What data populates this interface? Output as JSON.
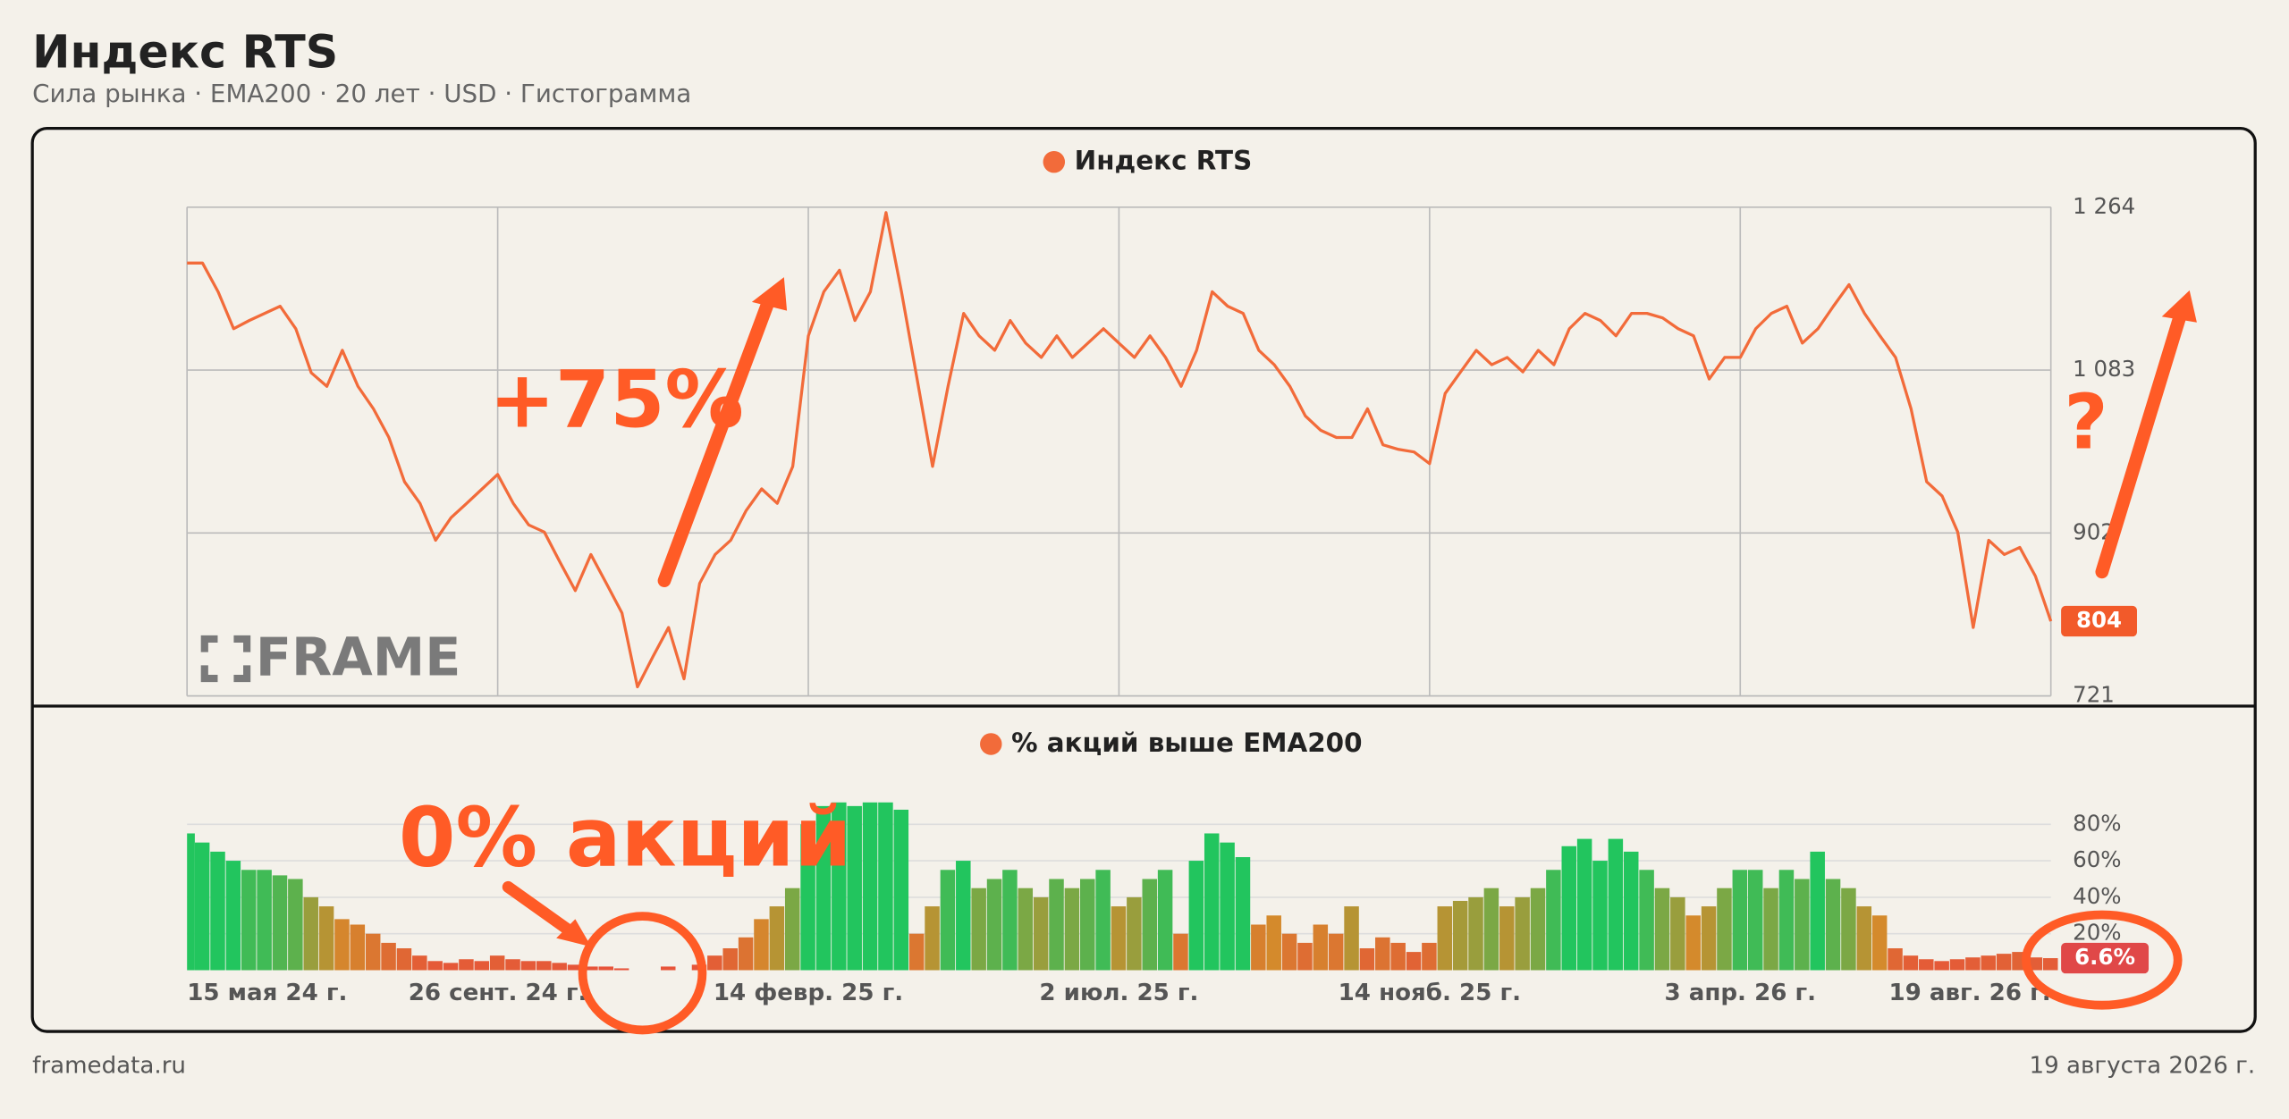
{
  "header": {
    "title": "Индекс RTS",
    "subtitle": "Сила рынка · EMA200 · 20 лет · USD · Гистограмма"
  },
  "footer": {
    "source": "framedata.ru",
    "date": "19 августа 2026 г."
  },
  "chart_data": [
    {
      "type": "line",
      "watermark": "FRAME",
      "annotations": [
        "+75%",
        "?"
      ],
      "series": [
        {
          "name": "Индекс RTS",
          "color": "#f26b3a",
          "values": [
            1202,
            1202,
            1170,
            1129,
            1138,
            1146,
            1154,
            1129,
            1080,
            1065,
            1105,
            1065,
            1040,
            1008,
            959,
            935,
            894,
            919,
            935,
            951,
            967,
            935,
            911,
            903,
            870,
            838,
            878,
            846,
            813,
            731,
            765,
            797,
            740,
            846,
            878,
            894,
            927,
            951,
            935,
            976,
            1121,
            1170,
            1194,
            1138,
            1170,
            1258,
            1170,
            1073,
            976,
            1065,
            1146,
            1121,
            1105,
            1138,
            1113,
            1097,
            1121,
            1097,
            1113,
            1129,
            1113,
            1097,
            1121,
            1097,
            1065,
            1105,
            1170,
            1154,
            1146,
            1105,
            1089,
            1065,
            1032,
            1016,
            1008,
            1008,
            1040,
            1000,
            995,
            992,
            979,
            1057,
            1081,
            1105,
            1089,
            1097,
            1081,
            1105,
            1089,
            1129,
            1146,
            1138,
            1121,
            1146,
            1146,
            1141,
            1129,
            1121,
            1073,
            1097,
            1097,
            1129,
            1146,
            1154,
            1113,
            1129,
            1154,
            1178,
            1146,
            1121,
            1097,
            1040,
            959,
            943,
            903,
            797,
            894,
            878,
            886,
            854,
            804
          ]
        }
      ],
      "ylim": [
        721,
        1264
      ],
      "yticks": [
        {
          "value": 721,
          "label": "721"
        },
        {
          "value": 902,
          "label": "902"
        },
        {
          "value": 1083,
          "label": "1 083"
        },
        {
          "value": 1264,
          "label": "1 264"
        }
      ],
      "grid": true,
      "badge_color": "#f25a2a"
    },
    {
      "type": "bar",
      "annotations": [
        "0% акций"
      ],
      "categories": [
        "15 мая 24 г.",
        null,
        null,
        null,
        null,
        null,
        null,
        null,
        null,
        null,
        null,
        null,
        null,
        null,
        null,
        null,
        null,
        null,
        null,
        null,
        "26 сент. 24 г.",
        null,
        null,
        null,
        null,
        null,
        null,
        null,
        null,
        null,
        null,
        null,
        null,
        null,
        null,
        null,
        null,
        null,
        null,
        null,
        "14 февр. 25 г.",
        null,
        null,
        null,
        null,
        null,
        null,
        null,
        null,
        null,
        null,
        null,
        null,
        null,
        null,
        null,
        null,
        null,
        null,
        null,
        "2 июл. 25 г.",
        null,
        null,
        null,
        null,
        null,
        null,
        null,
        null,
        null,
        null,
        null,
        null,
        null,
        null,
        null,
        null,
        null,
        null,
        null,
        "14 нояб. 25 г.",
        null,
        null,
        null,
        null,
        null,
        null,
        null,
        null,
        null,
        null,
        null,
        null,
        null,
        null,
        null,
        null,
        null,
        null,
        null,
        "3 апр. 26 г.",
        null,
        null,
        null,
        null,
        null,
        null,
        null,
        null,
        null,
        null,
        null,
        null,
        null,
        null,
        null,
        null,
        null,
        null,
        null,
        "19 авг. 26 г."
      ],
      "series": [
        {
          "name": "% акций выше EMA200",
          "color": "#f26b3a",
          "values": [
            75,
            70,
            65,
            60,
            55,
            55,
            52,
            50,
            40,
            35,
            28,
            25,
            20,
            15,
            12,
            8,
            5,
            4,
            6,
            5,
            8,
            6,
            5,
            5,
            4,
            3,
            2,
            2,
            1,
            0,
            0,
            2,
            0,
            3,
            8,
            12,
            18,
            28,
            35,
            45,
            80,
            90,
            92,
            90,
            92,
            92,
            88,
            20,
            35,
            55,
            60,
            45,
            50,
            55,
            45,
            40,
            50,
            45,
            50,
            55,
            35,
            40,
            50,
            55,
            20,
            60,
            75,
            70,
            62,
            25,
            30,
            20,
            15,
            25,
            20,
            35,
            12,
            18,
            15,
            10,
            15,
            35,
            38,
            40,
            45,
            35,
            40,
            45,
            55,
            68,
            72,
            60,
            72,
            65,
            55,
            45,
            40,
            30,
            35,
            45,
            55,
            55,
            45,
            55,
            50,
            65,
            50,
            45,
            35,
            30,
            12,
            8,
            6,
            5,
            6,
            7,
            8,
            9,
            10,
            7,
            6.6
          ],
          "value_labels": [
            null,
            null,
            null,
            null,
            null,
            null,
            null,
            null,
            null,
            null,
            null,
            null,
            null,
            null,
            null,
            null,
            null,
            null,
            null,
            null,
            null,
            null,
            null,
            null,
            null,
            null,
            null,
            null,
            null,
            null,
            null,
            null,
            null,
            null,
            null,
            null,
            null,
            null,
            null,
            null,
            null,
            null,
            null,
            null,
            null,
            null,
            null,
            null,
            null,
            null,
            null,
            null,
            null,
            null,
            null,
            null,
            null,
            null,
            null,
            null,
            null,
            null,
            null,
            null,
            null,
            null,
            null,
            null,
            null,
            null,
            null,
            null,
            null,
            null,
            null,
            null,
            null,
            null,
            null,
            null,
            null,
            null,
            null,
            null,
            null,
            null,
            null,
            null,
            null,
            null,
            null,
            null,
            null,
            null,
            null,
            null,
            null,
            null,
            null,
            null,
            null,
            null,
            null,
            null,
            null,
            null,
            null,
            null,
            null,
            null,
            null,
            null,
            null,
            null,
            null,
            null,
            null,
            null,
            null,
            null,
            "6.6%"
          ]
        }
      ],
      "bar_colors": [
        "#e8503a",
        "#d48a2c",
        "#22c55e"
      ],
      "ylim": [
        0,
        100
      ],
      "yticks": [
        {
          "value": 20,
          "label": "20%"
        },
        {
          "value": 40,
          "label": "40%"
        },
        {
          "value": 60,
          "label": "60%"
        },
        {
          "value": 80,
          "label": "80%"
        }
      ],
      "grid": true,
      "badge_color": "#e04848"
    }
  ]
}
